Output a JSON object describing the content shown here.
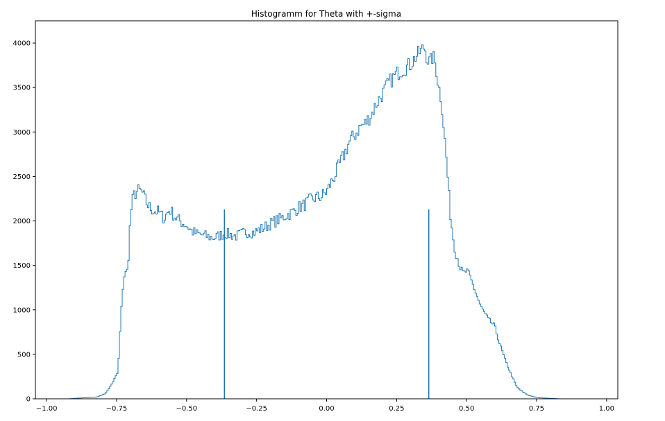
{
  "chart_data": {
    "type": "histogram",
    "title": "Histogramm for Theta with +-sigma",
    "xlabel": "",
    "ylabel": "",
    "xlim": [
      -1.04,
      1.04
    ],
    "ylim": [
      0,
      4250
    ],
    "xticks": [
      -1.0,
      -0.75,
      -0.5,
      -0.25,
      0.0,
      0.25,
      0.5,
      0.75,
      1.0
    ],
    "xtick_labels": [
      "−1.00",
      "−0.75",
      "−0.50",
      "−0.25",
      "0.00",
      "0.25",
      "0.50",
      "0.75",
      "1.00"
    ],
    "yticks": [
      0,
      500,
      1000,
      1500,
      2000,
      2500,
      3000,
      3500,
      4000
    ],
    "ytick_labels": [
      "0",
      "500",
      "1000",
      "1500",
      "2000",
      "2500",
      "3000",
      "3500",
      "4000"
    ],
    "grid": false,
    "line_color": "#1f77b4",
    "histogram_profile": [
      [
        -0.92,
        0
      ],
      [
        -0.9,
        5
      ],
      [
        -0.85,
        15
      ],
      [
        -0.82,
        20
      ],
      [
        -0.79,
        60
      ],
      [
        -0.77,
        150
      ],
      [
        -0.745,
        300
      ],
      [
        -0.735,
        900
      ],
      [
        -0.725,
        1370
      ],
      [
        -0.71,
        1450
      ],
      [
        -0.7,
        2080
      ],
      [
        -0.69,
        2280
      ],
      [
        -0.675,
        2340
      ],
      [
        -0.66,
        2330
      ],
      [
        -0.64,
        2180
      ],
      [
        -0.62,
        2120
      ],
      [
        -0.6,
        2100
      ],
      [
        -0.58,
        2030
      ],
      [
        -0.56,
        2130
      ],
      [
        -0.54,
        2040
      ],
      [
        -0.52,
        1990
      ],
      [
        -0.5,
        1950
      ],
      [
        -0.48,
        1880
      ],
      [
        -0.46,
        1850
      ],
      [
        -0.44,
        1840
      ],
      [
        -0.42,
        1820
      ],
      [
        -0.4,
        1810
      ],
      [
        -0.38,
        1840
      ],
      [
        -0.36,
        1860
      ],
      [
        -0.34,
        1840
      ],
      [
        -0.32,
        1830
      ],
      [
        -0.3,
        1860
      ],
      [
        -0.28,
        1880
      ],
      [
        -0.26,
        1870
      ],
      [
        -0.24,
        1900
      ],
      [
        -0.22,
        1930
      ],
      [
        -0.2,
        1970
      ],
      [
        -0.18,
        2000
      ],
      [
        -0.16,
        2030
      ],
      [
        -0.14,
        2070
      ],
      [
        -0.12,
        2100
      ],
      [
        -0.1,
        2150
      ],
      [
        -0.08,
        2180
      ],
      [
        -0.06,
        2230
      ],
      [
        -0.04,
        2260
      ],
      [
        -0.02,
        2270
      ],
      [
        0.0,
        2330
      ],
      [
        0.02,
        2450
      ],
      [
        0.04,
        2580
      ],
      [
        0.06,
        2720
      ],
      [
        0.08,
        2880
      ],
      [
        0.1,
        2960
      ],
      [
        0.12,
        3060
      ],
      [
        0.14,
        3100
      ],
      [
        0.16,
        3200
      ],
      [
        0.18,
        3330
      ],
      [
        0.2,
        3430
      ],
      [
        0.22,
        3540
      ],
      [
        0.24,
        3620
      ],
      [
        0.26,
        3680
      ],
      [
        0.28,
        3720
      ],
      [
        0.3,
        3760
      ],
      [
        0.32,
        3850
      ],
      [
        0.34,
        3920
      ],
      [
        0.35,
        3960
      ],
      [
        0.36,
        3820
      ],
      [
        0.37,
        3780
      ],
      [
        0.38,
        3850
      ],
      [
        0.39,
        3750
      ],
      [
        0.4,
        3520
      ],
      [
        0.41,
        3360
      ],
      [
        0.42,
        3000
      ],
      [
        0.43,
        2610
      ],
      [
        0.44,
        2150
      ],
      [
        0.45,
        1860
      ],
      [
        0.46,
        1660
      ],
      [
        0.47,
        1560
      ],
      [
        0.48,
        1450
      ],
      [
        0.49,
        1400
      ],
      [
        0.5,
        1440
      ],
      [
        0.51,
        1380
      ],
      [
        0.53,
        1220
      ],
      [
        0.55,
        1040
      ],
      [
        0.57,
        930
      ],
      [
        0.58,
        880
      ],
      [
        0.6,
        820
      ],
      [
        0.62,
        600
      ],
      [
        0.64,
        420
      ],
      [
        0.66,
        270
      ],
      [
        0.68,
        130
      ],
      [
        0.7,
        80
      ],
      [
        0.72,
        40
      ],
      [
        0.75,
        15
      ],
      [
        0.78,
        8
      ],
      [
        0.82,
        3
      ],
      [
        0.83,
        0
      ]
    ],
    "vertical_lines": [
      {
        "x": -0.365,
        "y": 2130
      },
      {
        "x": 0.365,
        "y": 2130
      }
    ]
  }
}
